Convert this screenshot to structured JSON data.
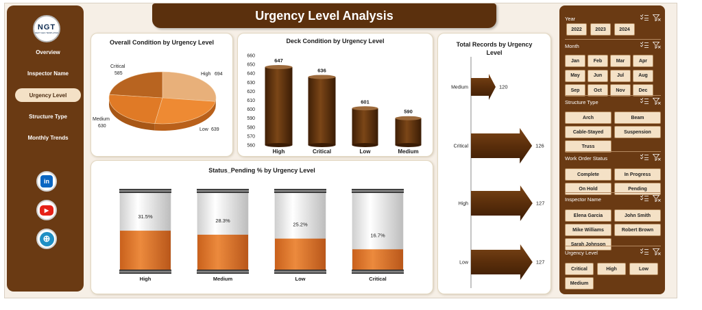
{
  "app": {
    "title": "Urgency Level Analysis"
  },
  "logo": {
    "text": "NGT",
    "subtext": "NEXT GEN TEMPLATES"
  },
  "nav": {
    "items": [
      {
        "label": "Overview"
      },
      {
        "label": "Inspector Name"
      },
      {
        "label": "Urgency Level"
      },
      {
        "label": "Structure Type"
      },
      {
        "label": "Monthly Trends"
      }
    ],
    "active": "Urgency Level"
  },
  "social": {
    "linkedin": "in",
    "youtube": "▶",
    "web": "⊕"
  },
  "colors": {
    "brown": "#6a3a13",
    "dark_brown": "#5b300d",
    "orange": "#e07a2c",
    "cream": "#f4e1c6"
  },
  "pie": {
    "title": "Overall Condition by Urgency Level",
    "labels": [
      {
        "name": "Critical",
        "value": "585"
      },
      {
        "name": "High",
        "value": "694"
      },
      {
        "name": "Medium",
        "value": "630"
      },
      {
        "name": "Low",
        "value": "639"
      }
    ]
  },
  "deck": {
    "title": "Deck Condition by Urgency Level"
  },
  "records": {
    "title": "Total Records by Urgency Level"
  },
  "pending": {
    "title": "Status_Pending % by Urgency Level"
  },
  "chart_data": [
    {
      "type": "pie",
      "title": "Overall Condition by Urgency Level",
      "categories": [
        "High",
        "Low",
        "Medium",
        "Critical"
      ],
      "values": [
        694,
        639,
        630,
        585
      ]
    },
    {
      "type": "bar",
      "title": "Deck Condition by Urgency Level",
      "categories": [
        "High",
        "Critical",
        "Low",
        "Medium"
      ],
      "values": [
        647,
        636,
        601,
        590
      ],
      "ylim": [
        560,
        660
      ],
      "yticks": [
        560,
        570,
        580,
        590,
        600,
        610,
        620,
        630,
        640,
        650,
        660
      ]
    },
    {
      "type": "bar",
      "title": "Total Records by Urgency Level",
      "orientation": "horizontal",
      "categories": [
        "Medium",
        "Critical",
        "High",
        "Low"
      ],
      "values": [
        120,
        126,
        127,
        127
      ]
    },
    {
      "type": "bar",
      "title": "Status_Pending % by Urgency Level",
      "categories": [
        "High",
        "Medium",
        "Low",
        "Critical"
      ],
      "values": [
        31.5,
        28.3,
        25.2,
        16.7
      ],
      "value_labels": [
        "31.5%",
        "28.3%",
        "25.2%",
        "16.7%"
      ]
    }
  ],
  "slicers": {
    "year": {
      "title": "Year",
      "options": [
        "2022",
        "2023",
        "2024"
      ]
    },
    "month": {
      "title": "Month",
      "options": [
        "Jan",
        "Feb",
        "Mar",
        "Apr",
        "May",
        "Jun",
        "Jul",
        "Aug",
        "Sep",
        "Oct",
        "Nov",
        "Dec"
      ]
    },
    "structure": {
      "title": "Structure Type",
      "options": [
        "Arch",
        "Beam",
        "Cable-Stayed",
        "Suspension",
        "Truss"
      ]
    },
    "workorder": {
      "title": "Work Order Status",
      "options": [
        "Complete",
        "In Progress",
        "On Hold",
        "Pending"
      ]
    },
    "inspector": {
      "title": "Inspector Name",
      "options": [
        "Elena Garcia",
        "John Smith",
        "Mike Williams",
        "Robert Brown",
        "Sarah Johnson"
      ]
    },
    "urgency": {
      "title": "Urgency Level",
      "options": [
        "Critical",
        "High",
        "Low",
        "Medium"
      ]
    }
  }
}
